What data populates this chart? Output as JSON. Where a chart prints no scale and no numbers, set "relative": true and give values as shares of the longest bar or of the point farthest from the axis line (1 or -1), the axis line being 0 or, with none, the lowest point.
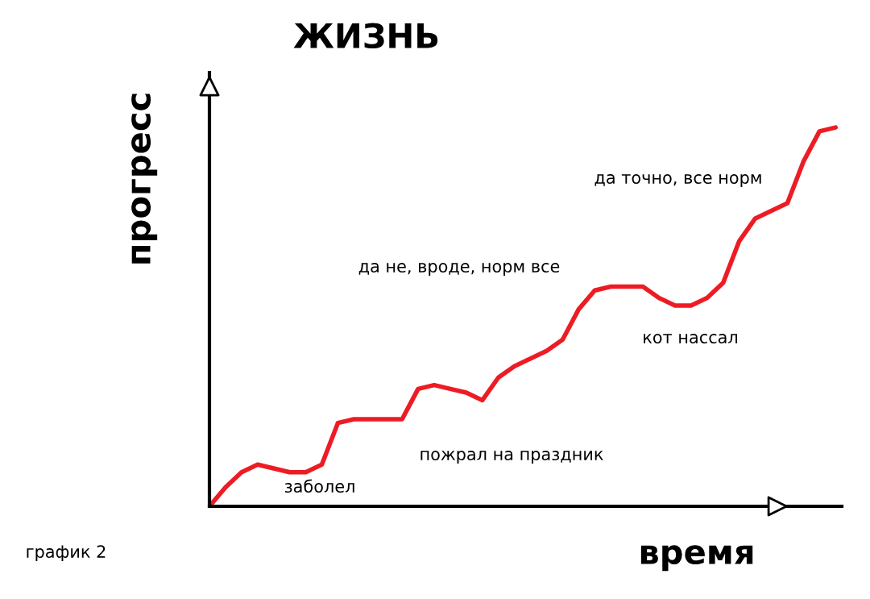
{
  "chart_data": {
    "type": "line",
    "title": "ЖИЗНЬ",
    "xlabel": "время",
    "ylabel": "прогресс",
    "relative": true,
    "color": "#ed1c24",
    "categories": [
      null,
      null,
      null,
      null,
      null,
      null,
      null,
      null,
      null,
      null,
      null,
      null,
      null,
      null,
      null,
      null,
      null,
      null,
      null,
      null,
      null,
      null,
      null,
      null,
      null,
      null,
      null,
      null,
      null,
      null,
      null,
      null,
      null,
      null,
      null,
      null,
      null,
      null,
      null,
      null
    ],
    "values": [
      0,
      0.05,
      0.09,
      0.11,
      0.1,
      0.09,
      0.09,
      0.11,
      0.22,
      0.23,
      0.23,
      0.23,
      0.23,
      0.31,
      0.32,
      0.31,
      0.3,
      0.28,
      0.34,
      0.37,
      0.39,
      0.41,
      0.44,
      0.52,
      0.57,
      0.58,
      0.58,
      0.58,
      0.55,
      0.53,
      0.53,
      0.55,
      0.59,
      0.7,
      0.76,
      0.78,
      0.8,
      0.91,
      0.99,
      1
    ],
    "annotations": [
      "заболел",
      "пожрал на праздник",
      "да не, вроде, норм все",
      "кот нассал",
      "да точно, все норм",
      "график 2"
    ],
    "grid": false,
    "legend": false
  }
}
